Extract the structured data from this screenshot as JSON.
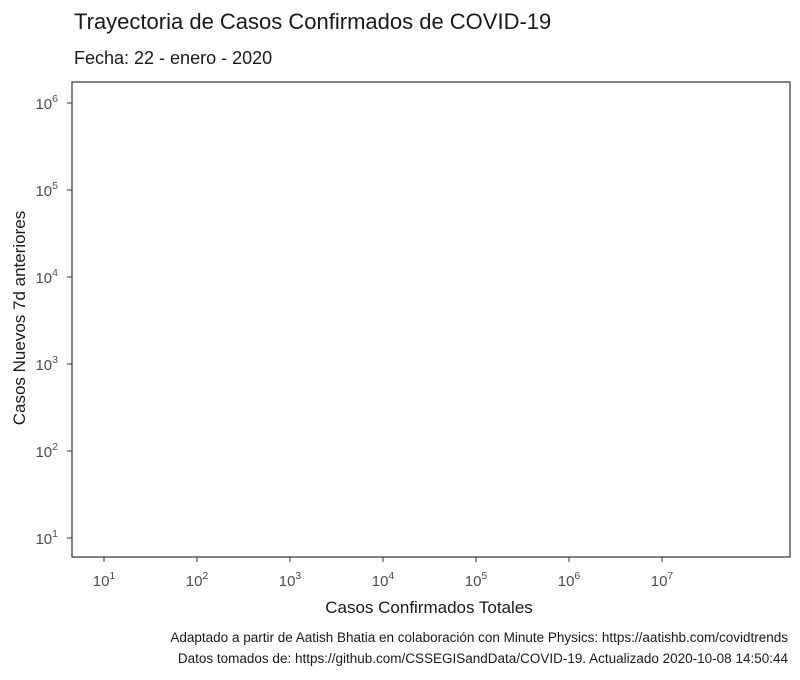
{
  "chart_data": {
    "type": "scatter",
    "title": "Trayectoria de Casos Confirmados de COVID-19",
    "subtitle": "Fecha: 22 - enero - 2020",
    "xlabel": "Casos Confirmados Totales",
    "ylabel": "Casos Nuevos 7d anteriores",
    "x_scale": "log",
    "y_scale": "log",
    "x_ticks": [
      {
        "base": "10",
        "exp": "1",
        "value": 10
      },
      {
        "base": "10",
        "exp": "2",
        "value": 100
      },
      {
        "base": "10",
        "exp": "3",
        "value": 1000
      },
      {
        "base": "10",
        "exp": "4",
        "value": 10000
      },
      {
        "base": "10",
        "exp": "5",
        "value": 100000
      },
      {
        "base": "10",
        "exp": "6",
        "value": 1000000
      },
      {
        "base": "10",
        "exp": "7",
        "value": 10000000
      }
    ],
    "y_ticks": [
      {
        "base": "10",
        "exp": "1",
        "value": 10
      },
      {
        "base": "10",
        "exp": "2",
        "value": 100
      },
      {
        "base": "10",
        "exp": "3",
        "value": 1000
      },
      {
        "base": "10",
        "exp": "4",
        "value": 10000
      },
      {
        "base": "10",
        "exp": "5",
        "value": 100000
      },
      {
        "base": "10",
        "exp": "6",
        "value": 1000000
      }
    ],
    "series": [],
    "grid": false,
    "caption": [
      "Adaptado a partir de Aatish Bhatia en colaboración con Minute Physics: https://aatishb.com/covidtrends",
      "Datos tomados de: https://github.com/CSSEGISandData/COVID-19. Actualizado 2020-10-08 14:50:44"
    ],
    "colors": {
      "axis": "#333333",
      "text": "#1a1a1a",
      "tick_text": "#4d4d4d"
    }
  }
}
